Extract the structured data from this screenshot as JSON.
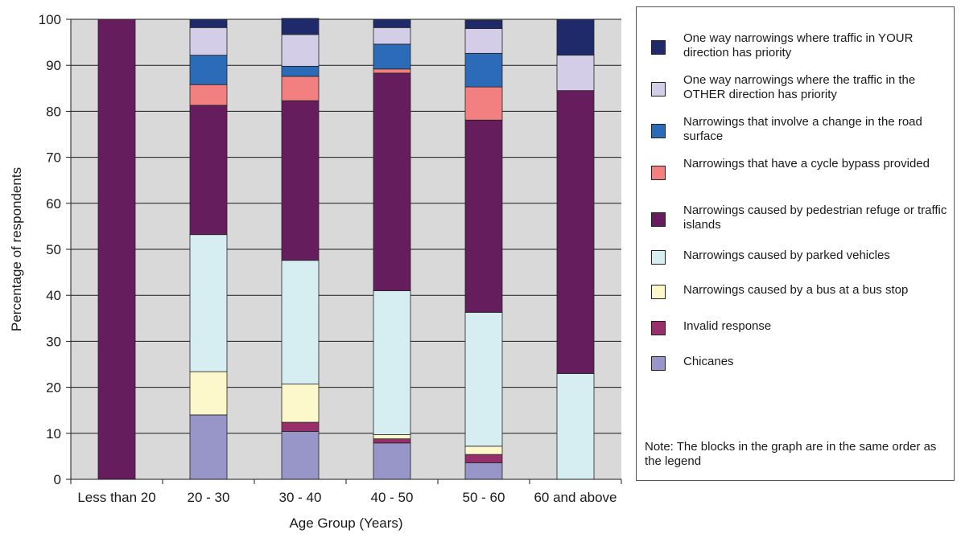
{
  "chart_data": {
    "type": "bar",
    "stacked": true,
    "xlabel": "Age Group (Years)",
    "ylabel": "Percentage of respondents",
    "ylim": [
      0,
      100
    ],
    "yticks": [
      0,
      10,
      20,
      30,
      40,
      50,
      60,
      70,
      80,
      90,
      100
    ],
    "grid": true,
    "legend_position": "right",
    "categories": [
      "Less than 20",
      "20 - 30",
      "30 - 40",
      "40 - 50",
      "50 - 60",
      "60 and above"
    ],
    "series": [
      {
        "name": "One way narrowings where traffic in YOUR direction has priority",
        "color": "#1f2a6b",
        "values": [
          0,
          1.8,
          3.5,
          1.8,
          1.8,
          7.8
        ]
      },
      {
        "name": "One way narrowings where the traffic in the OTHER direction has priority",
        "color": "#d4cde8",
        "values": [
          0,
          6.0,
          6.9,
          3.6,
          5.4,
          7.7
        ]
      },
      {
        "name": "Narrowings that involve a change in the road surface",
        "color": "#2c6bb8",
        "values": [
          0,
          6.4,
          2.2,
          5.4,
          7.3,
          0
        ]
      },
      {
        "name": "Narrowings that have a cycle bypass provided",
        "color": "#f28080",
        "values": [
          0,
          4.5,
          5.3,
          0.9,
          7.2,
          0
        ]
      },
      {
        "name": "Narrowings caused by pedestrian refuge or traffic islands",
        "color": "#651d5e",
        "values": [
          100,
          28.1,
          34.7,
          47.3,
          41.8,
          61.5
        ]
      },
      {
        "name": "Narrowings caused by parked vehicles",
        "color": "#d6eef2",
        "values": [
          0,
          29.8,
          26.9,
          31.3,
          29.1,
          23.0
        ]
      },
      {
        "name": "Narrowings caused by a bus at a bus stop",
        "color": "#fcf8cc",
        "values": [
          0,
          9.4,
          8.3,
          0.9,
          1.8,
          0
        ]
      },
      {
        "name": "Invalid response",
        "color": "#97306a",
        "values": [
          0,
          0,
          2.0,
          0.9,
          1.8,
          0
        ]
      },
      {
        "name": "Chicanes",
        "color": "#9896c8",
        "values": [
          0,
          14.0,
          10.4,
          7.9,
          3.6,
          0
        ]
      }
    ]
  },
  "note": "Note: The blocks in the graph are in the same order as the legend",
  "colors": {
    "plot_background": "#d9d9d9",
    "gridline": "#1a1a1a"
  }
}
